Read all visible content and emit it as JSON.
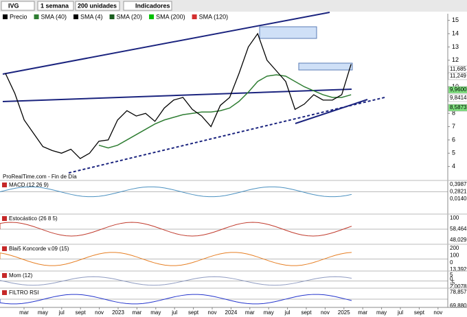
{
  "toolbar": {
    "symbol": "IVG",
    "period": "1 semana",
    "units": "200 unidades",
    "indicators": "Indicadores"
  },
  "legend": [
    {
      "name": "Precio",
      "color": "#000000"
    },
    {
      "name": "SMA (40)",
      "color": "#2e7d32"
    },
    {
      "name": "SMA (4)",
      "color": "#000000"
    },
    {
      "name": "SMA (20)",
      "color": "#1b5e20"
    },
    {
      "name": "SMA (200)",
      "color": "#00c000"
    },
    {
      "name": "SMA (120)",
      "color": "#d32f2f"
    }
  ],
  "watermark": "ProRealTime.com - Fin de Día",
  "main_chart": {
    "ylim": [
      3.0,
      15.5
    ],
    "yticks": [
      4,
      5,
      6,
      7,
      8,
      9,
      10,
      11,
      12,
      13,
      14,
      15
    ],
    "price_tags": [
      {
        "label": "11,685",
        "color": "#ffffff"
      },
      {
        "label": "11,249",
        "color": "#ffffff"
      },
      {
        "label": "9,9600",
        "color": "#7ee07e"
      },
      {
        "label": "9,8414",
        "color": "#ffffff"
      },
      {
        "label": "8,5873",
        "color": "#7ee07e"
      }
    ],
    "price": {
      "name": "Precio",
      "color": "#000000",
      "values": [
        11,
        9.5,
        7.5,
        6.5,
        5.5,
        5.2,
        5.0,
        5.3,
        4.6,
        5.0,
        5.9,
        6.0,
        7.5,
        8.2,
        7.8,
        8.0,
        7.4,
        8.4,
        9.0,
        9.2,
        8.3,
        7.8,
        7.0,
        8.6,
        9.2,
        11,
        13.0,
        14.0,
        12,
        11.2,
        10.4,
        8.3,
        8.7,
        9.4,
        9.0,
        9.0,
        9.4,
        11.7
      ]
    },
    "sma": {
      "name": "SMA (40)",
      "color": "#2e7d32",
      "values": [
        null,
        null,
        null,
        null,
        null,
        null,
        null,
        null,
        null,
        null,
        5.6,
        5.4,
        5.6,
        6.0,
        6.4,
        6.8,
        7.2,
        7.5,
        7.7,
        7.9,
        8.0,
        8.1,
        8.1,
        8.2,
        8.4,
        8.9,
        9.6,
        10.4,
        10.8,
        10.9,
        10.8,
        10.4,
        10.0,
        9.7,
        9.4,
        9.2,
        9.2,
        9.4
      ]
    }
  },
  "x_labels": [
    "mar",
    "may",
    "jul",
    "sept",
    "nov",
    "2023",
    "mar",
    "may",
    "jul",
    "sept",
    "nov",
    "2024",
    "mar",
    "may",
    "jul",
    "sept",
    "nov",
    "2025",
    "mar",
    "may",
    "jul",
    "sept",
    "nov"
  ],
  "panels": [
    {
      "title": "MACD (12 26 9)",
      "labels": [
        "0,3987",
        "0,2821",
        "0,0140"
      ]
    },
    {
      "title": "Estocástico (26 8 5)",
      "labels": [
        "100",
        "58,464",
        "48,029"
      ]
    },
    {
      "title": "Blai5 Koncorde v.09 (15)",
      "labels": [
        "200",
        "100",
        "0",
        "13,392"
      ]
    },
    {
      "title": "Mom (12)",
      "labels": [
        "5",
        "0",
        "-5",
        "2,0078"
      ]
    },
    {
      "title": "FILTRO RSI",
      "labels": [
        "78,857",
        "69,880"
      ]
    }
  ]
}
